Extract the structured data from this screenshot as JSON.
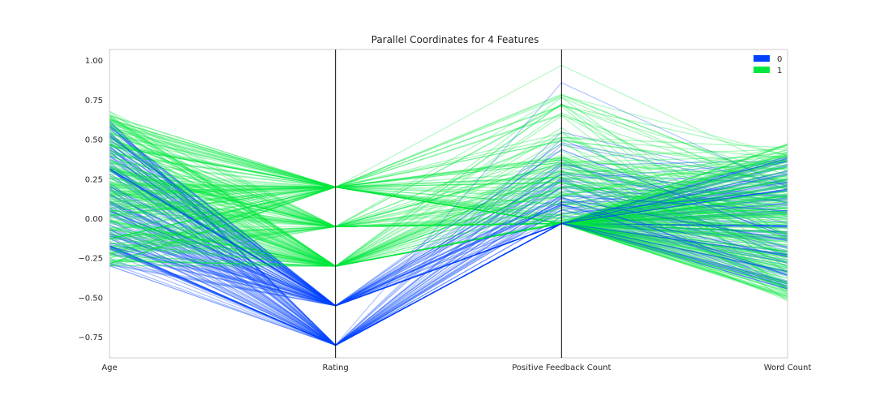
{
  "chart_data": {
    "type": "parallel_coordinates",
    "title": "Parallel Coordinates for 4 Features",
    "features": [
      "Age",
      "Rating",
      "Positive Feedback Count",
      "Word Count"
    ],
    "ylim": [
      -0.88,
      1.07
    ],
    "yticks": [
      1.0,
      0.75,
      0.5,
      0.25,
      0.0,
      -0.25,
      -0.5,
      -0.75
    ],
    "ytick_labels": [
      "1.00",
      "0.75",
      "0.50",
      "0.25",
      "0.00",
      "−0.25",
      "−0.50",
      "−0.75"
    ],
    "grid": false,
    "legend": {
      "placement": "top-right",
      "entries": [
        {
          "label": "0",
          "color": "#0041ff"
        },
        {
          "label": "1",
          "color": "#00e83d"
        }
      ]
    },
    "rating_levels": {
      "0": [
        -0.55,
        -0.8
      ],
      "1": [
        0.2,
        -0.05,
        -0.3
      ]
    },
    "positive_feedback_floor": -0.03,
    "class_stats": {
      "0": {
        "count_approx": 120,
        "age_range": [
          -0.3,
          0.62
        ],
        "word_count_range": [
          -0.45,
          0.4
        ]
      },
      "1": {
        "count_approx": 220,
        "age_range": [
          -0.3,
          0.68
        ],
        "word_count_range": [
          -0.52,
          0.48
        ]
      }
    },
    "notable_lines": [
      {
        "class": "0",
        "values": [
          0.62,
          -0.8,
          0.86,
          0.2
        ]
      },
      {
        "class": "1",
        "values": [
          0.55,
          0.2,
          0.97,
          0.3
        ]
      },
      {
        "class": "1",
        "values": [
          0.68,
          -0.05,
          0.78,
          0.4
        ]
      }
    ]
  }
}
